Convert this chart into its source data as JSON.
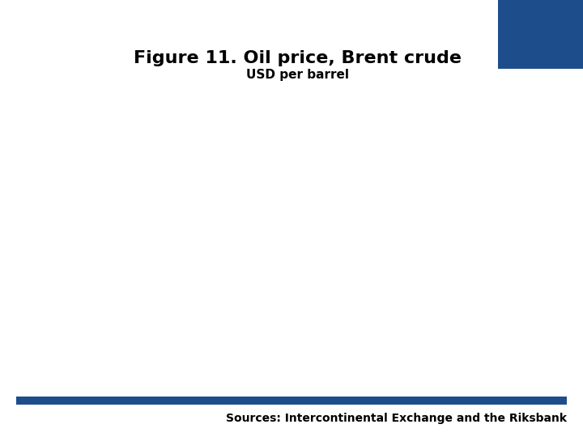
{
  "title": "Figure 11. Oil price, Brent crude",
  "subtitle": "USD per barrel",
  "sources_text": "Sources: Intercontinental Exchange and the Riksbank",
  "background_color": "#ffffff",
  "title_color": "#000000",
  "subtitle_color": "#000000",
  "sources_color": "#000000",
  "bar_color": "#1e4d8c",
  "logo_box_color": "#1e4d8c",
  "title_fontsize": 16,
  "subtitle_fontsize": 11,
  "sources_fontsize": 10
}
